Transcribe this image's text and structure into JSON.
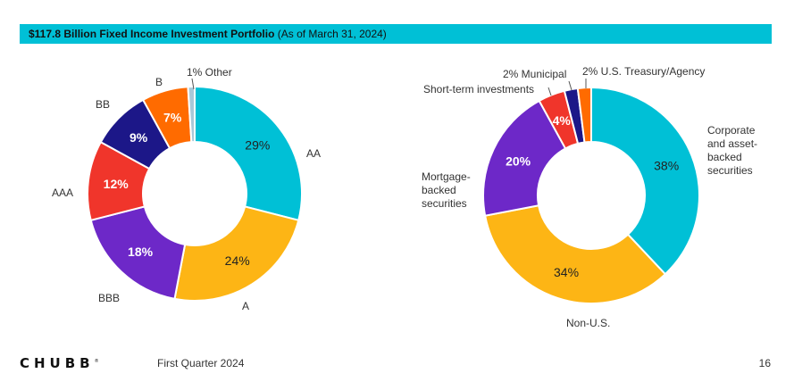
{
  "header": {
    "title_bold": "$117.8 Billion Fixed Income Investment Portfolio",
    "title_rest": " (As of March 31, 2024)"
  },
  "chart_data": [
    {
      "type": "pie",
      "variant": "donut",
      "slices": [
        {
          "label": "AA",
          "value": 29,
          "value_label": "29%",
          "color": "#00c0d6"
        },
        {
          "label": "A",
          "value": 24,
          "value_label": "24%",
          "color": "#fdb515"
        },
        {
          "label": "BBB",
          "value": 18,
          "value_label": "18%",
          "color": "#6d28c8"
        },
        {
          "label": "AAA",
          "value": 12,
          "value_label": "12%",
          "color": "#f0352b"
        },
        {
          "label": "BB",
          "value": 9,
          "value_label": "9%",
          "color": "#1c1788"
        },
        {
          "label": "B",
          "value": 7,
          "value_label": "7%",
          "color": "#ff6b00"
        },
        {
          "label": "Other",
          "value": 1,
          "value_label": "1% Other",
          "color": "#a8c8d8"
        }
      ]
    },
    {
      "type": "pie",
      "variant": "donut",
      "slices": [
        {
          "label": "Corporate and asset-backed securities",
          "value": 38,
          "value_label": "38%",
          "color": "#00c0d6"
        },
        {
          "label": "Non-U.S.",
          "value": 34,
          "value_label": "34%",
          "color": "#fdb515"
        },
        {
          "label": "Mortgage-backed securities",
          "value": 20,
          "value_label": "20%",
          "color": "#6d28c8"
        },
        {
          "label": "Short-term investments",
          "value": 4,
          "value_label": "4%",
          "color": "#f0352b"
        },
        {
          "label": "Municipal",
          "value": 2,
          "value_label": "2% Municipal",
          "color": "#1c1788"
        },
        {
          "label": "U.S. Treasury/Agency",
          "value": 2,
          "value_label": "2% U.S. Treasury/Agency",
          "color": "#ff6b00"
        }
      ]
    }
  ],
  "labels": {
    "left": {
      "aa": "AA",
      "a": "A",
      "bbb": "BBB",
      "aaa": "AAA",
      "bb": "BB",
      "b": "B",
      "other": "1% Other"
    },
    "right": {
      "corporate": [
        "Corporate",
        "and asset-",
        "backed",
        "securities"
      ],
      "non_us": "Non-U.S.",
      "mortgage": [
        "Mortgage-",
        "backed",
        "securities"
      ],
      "short_term": "Short-term investments",
      "municipal": "2% Municipal",
      "treasury": "2% U.S. Treasury/Agency"
    }
  },
  "footer": {
    "logo": "CHUBB",
    "registered": "®",
    "quarter": "First Quarter 2024",
    "page": "16"
  }
}
